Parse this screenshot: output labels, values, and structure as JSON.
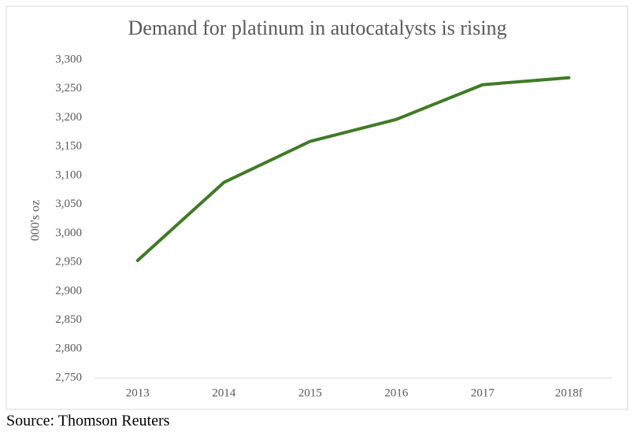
{
  "chart_data": {
    "type": "line",
    "title": "Demand for platinum in autocatalysts is rising",
    "y_label": "000's oz",
    "categories": [
      "2013",
      "2014",
      "2015",
      "2016",
      "2017",
      "2018f"
    ],
    "values": [
      2953,
      3088,
      3159,
      3197,
      3257,
      3269
    ],
    "color": "#3f7a25",
    "ylim": [
      2750,
      3300
    ],
    "yticks": [
      {
        "value": 2750,
        "label": "2,750"
      },
      {
        "value": 2800,
        "label": "2,800"
      },
      {
        "value": 2850,
        "label": "2,850"
      },
      {
        "value": 2900,
        "label": "2,900"
      },
      {
        "value": 2950,
        "label": "2,950"
      },
      {
        "value": 3000,
        "label": "3,000"
      },
      {
        "value": 3050,
        "label": "3,050"
      },
      {
        "value": 3100,
        "label": "3,100"
      },
      {
        "value": 3150,
        "label": "3,150"
      },
      {
        "value": 3200,
        "label": "3,200"
      },
      {
        "value": 3250,
        "label": "3,250"
      },
      {
        "value": 3300,
        "label": "3,300"
      }
    ],
    "grid": false
  },
  "source": "Source: Thomson Reuters"
}
